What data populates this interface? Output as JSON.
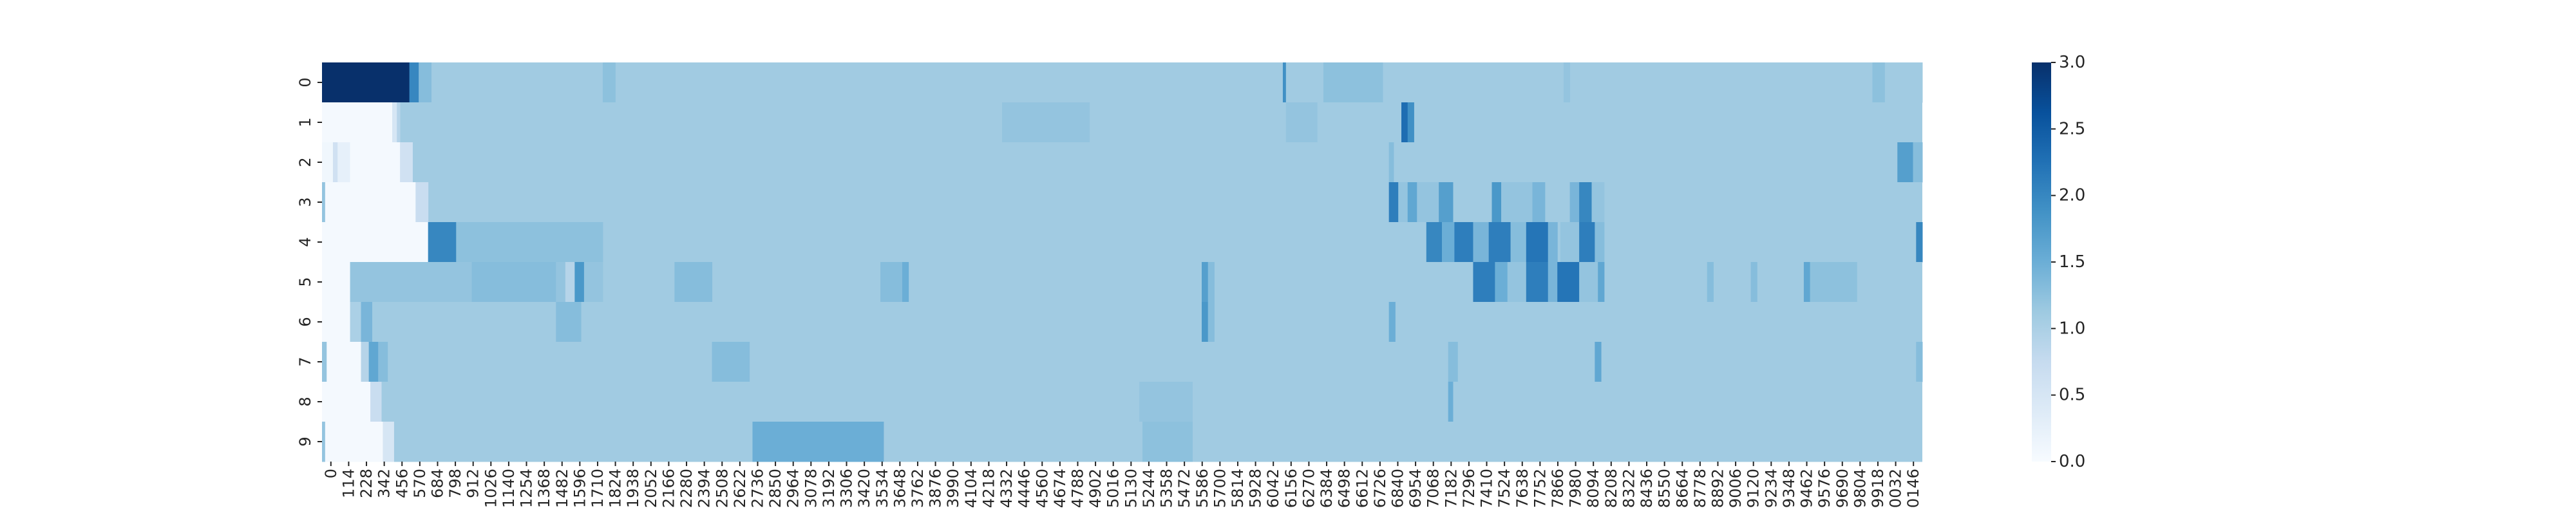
{
  "chart_data": {
    "type": "heatmap",
    "title": "",
    "xlabel": "",
    "ylabel": "",
    "y_tick_labels": [
      "0",
      "1",
      "2",
      "3",
      "4",
      "5",
      "6",
      "7",
      "8",
      "9"
    ],
    "x_tick_labels": [
      "0",
      "114",
      "228",
      "342",
      "456",
      "570",
      "684",
      "798",
      "912",
      "1026",
      "1140",
      "1254",
      "1368",
      "1482",
      "1596",
      "1710",
      "1824",
      "1938",
      "2052",
      "2166",
      "2280",
      "2394",
      "2508",
      "2622",
      "2736",
      "2850",
      "2964",
      "3078",
      "3192",
      "3306",
      "3420",
      "3534",
      "3648",
      "3762",
      "3876",
      "3990",
      "4104",
      "4218",
      "4332",
      "4446",
      "4560",
      "4674",
      "4788",
      "4902",
      "5016",
      "5130",
      "5244",
      "5358",
      "5472",
      "5586",
      "5700",
      "5814",
      "5928",
      "6042",
      "6156",
      "6270",
      "6384",
      "6498",
      "6612",
      "6726",
      "6840",
      "6954",
      "7068",
      "7182",
      "7296",
      "7410",
      "7524",
      "7638",
      "7752",
      "7866",
      "7980",
      "8094",
      "8208",
      "8322",
      "8436",
      "8550",
      "8664",
      "8778",
      "8892",
      "9006",
      "9120",
      "9234",
      "9348",
      "9462",
      "9576",
      "9690",
      "9804",
      "9918",
      "0032",
      "0146"
    ],
    "x_range": [
      0,
      10260
    ],
    "colorbar": {
      "vmin": 0.0,
      "vmax": 3.0,
      "tick_labels": [
        "0.0",
        "0.5",
        "1.0",
        "1.5",
        "2.0",
        "2.5",
        "3.0"
      ],
      "tick_values": [
        0.0,
        0.5,
        1.0,
        1.5,
        2.0,
        2.5,
        3.0
      ],
      "colormap": "Blues",
      "color_stops": [
        "#f7fbff",
        "#deebf7",
        "#c6dbef",
        "#9ecae1",
        "#6baed6",
        "#4292c6",
        "#2171b5",
        "#08519c",
        "#08306b"
      ]
    },
    "base_value": 1.1,
    "rows": [
      {
        "label": "0",
        "segments": [
          [
            0,
            560,
            3.0
          ],
          [
            560,
            620,
            2.0
          ],
          [
            620,
            700,
            1.3
          ],
          [
            1800,
            1880,
            1.25
          ],
          [
            6160,
            6180,
            1.9
          ],
          [
            6180,
            6420,
            1.1
          ],
          [
            6420,
            6800,
            1.25
          ],
          [
            7960,
            8000,
            1.2
          ],
          [
            9940,
            10020,
            1.25
          ],
          [
            10020,
            10260,
            1.1
          ]
        ]
      },
      {
        "label": "1",
        "segments": [
          [
            0,
            450,
            0.05
          ],
          [
            450,
            480,
            0.5
          ],
          [
            480,
            500,
            0.9
          ],
          [
            4360,
            4920,
            1.2
          ],
          [
            6180,
            6380,
            1.2
          ],
          [
            6920,
            6960,
            2.3
          ],
          [
            6960,
            7000,
            1.9
          ]
        ]
      },
      {
        "label": "2",
        "segments": [
          [
            0,
            70,
            0.1
          ],
          [
            70,
            100,
            0.6
          ],
          [
            100,
            180,
            0.25
          ],
          [
            180,
            500,
            0.05
          ],
          [
            500,
            580,
            0.6
          ],
          [
            6840,
            6870,
            1.3
          ],
          [
            10100,
            10200,
            1.7
          ],
          [
            10200,
            10260,
            1.3
          ]
        ]
      },
      {
        "label": "3",
        "segments": [
          [
            0,
            20,
            1.2
          ],
          [
            20,
            600,
            0.05
          ],
          [
            600,
            680,
            0.7
          ],
          [
            6840,
            6900,
            2.1
          ],
          [
            6900,
            6960,
            1.2
          ],
          [
            6960,
            7020,
            1.6
          ],
          [
            7020,
            7160,
            1.2
          ],
          [
            7160,
            7250,
            1.7
          ],
          [
            7500,
            7560,
            1.8
          ],
          [
            7560,
            7760,
            1.2
          ],
          [
            7760,
            7840,
            1.4
          ],
          [
            8000,
            8060,
            1.4
          ],
          [
            8060,
            8140,
            2.0
          ],
          [
            8140,
            8220,
            1.2
          ]
        ]
      },
      {
        "label": "4",
        "segments": [
          [
            0,
            680,
            0.05
          ],
          [
            680,
            860,
            2.0
          ],
          [
            860,
            1800,
            1.25
          ],
          [
            7080,
            7180,
            2.0
          ],
          [
            7180,
            7260,
            1.5
          ],
          [
            7260,
            7380,
            2.1
          ],
          [
            7380,
            7480,
            1.4
          ],
          [
            7480,
            7620,
            2.1
          ],
          [
            7620,
            7720,
            1.3
          ],
          [
            7720,
            7860,
            2.2
          ],
          [
            7860,
            7920,
            1.4
          ],
          [
            7940,
            8060,
            1.2
          ],
          [
            8060,
            8160,
            2.1
          ],
          [
            8160,
            8220,
            1.3
          ],
          [
            10220,
            10260,
            2.0
          ]
        ]
      },
      {
        "label": "5",
        "segments": [
          [
            0,
            180,
            0.05
          ],
          [
            180,
            960,
            1.2
          ],
          [
            960,
            1500,
            1.3
          ],
          [
            1500,
            1560,
            1.2
          ],
          [
            1560,
            1620,
            0.9
          ],
          [
            1620,
            1680,
            1.8
          ],
          [
            1680,
            1800,
            1.2
          ],
          [
            2260,
            2500,
            1.3
          ],
          [
            3580,
            3720,
            1.3
          ],
          [
            3720,
            3760,
            1.5
          ],
          [
            5640,
            5680,
            1.7
          ],
          [
            5680,
            5720,
            1.3
          ],
          [
            7380,
            7520,
            2.1
          ],
          [
            7520,
            7600,
            1.5
          ],
          [
            7600,
            7720,
            1.2
          ],
          [
            7720,
            7860,
            2.1
          ],
          [
            7860,
            7920,
            1.4
          ],
          [
            7920,
            8060,
            2.2
          ],
          [
            8060,
            8180,
            1.2
          ],
          [
            8180,
            8220,
            1.6
          ],
          [
            8880,
            8920,
            1.3
          ],
          [
            9160,
            9200,
            1.3
          ],
          [
            9500,
            9540,
            1.6
          ],
          [
            9540,
            9840,
            1.25
          ]
        ]
      },
      {
        "label": "6",
        "segments": [
          [
            0,
            180,
            0.05
          ],
          [
            180,
            250,
            1.0
          ],
          [
            250,
            320,
            1.4
          ],
          [
            1500,
            1660,
            1.3
          ],
          [
            5640,
            5680,
            1.8
          ],
          [
            5680,
            5720,
            1.3
          ],
          [
            6840,
            6880,
            1.5
          ]
        ]
      },
      {
        "label": "7",
        "segments": [
          [
            0,
            30,
            1.2
          ],
          [
            30,
            250,
            0.05
          ],
          [
            250,
            300,
            0.9
          ],
          [
            300,
            360,
            1.6
          ],
          [
            360,
            420,
            1.3
          ],
          [
            2500,
            2740,
            1.3
          ],
          [
            7220,
            7280,
            1.3
          ],
          [
            8160,
            8200,
            1.6
          ],
          [
            10220,
            10260,
            1.3
          ]
        ]
      },
      {
        "label": "8",
        "segments": [
          [
            0,
            310,
            0.05
          ],
          [
            310,
            380,
            0.7
          ],
          [
            5240,
            5580,
            1.2
          ],
          [
            7220,
            7250,
            1.5
          ]
        ]
      },
      {
        "label": "9",
        "segments": [
          [
            0,
            20,
            1.2
          ],
          [
            20,
            390,
            0.05
          ],
          [
            390,
            460,
            0.5
          ],
          [
            2760,
            3600,
            1.5
          ],
          [
            5260,
            5580,
            1.25
          ]
        ]
      }
    ]
  }
}
